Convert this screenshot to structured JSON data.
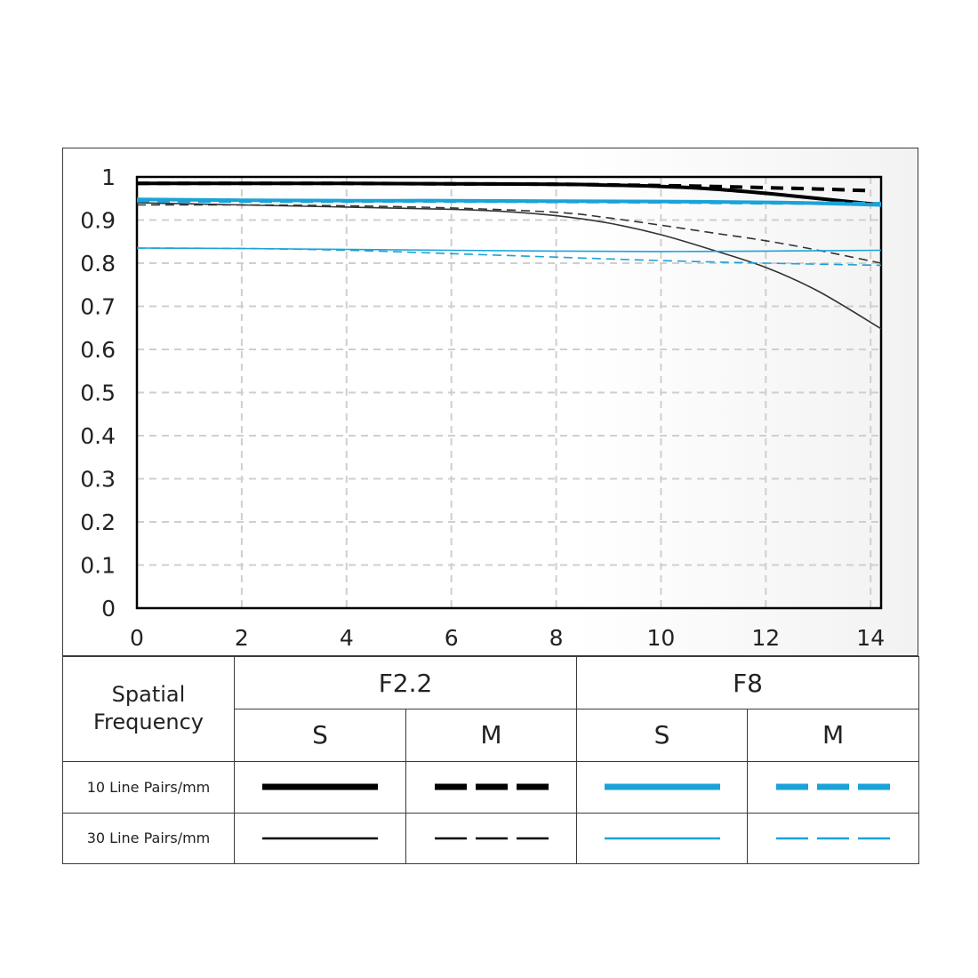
{
  "chart_data": {
    "type": "line",
    "x_ticks": [
      "0",
      "2",
      "4",
      "6",
      "8",
      "10",
      "12",
      "14"
    ],
    "y_ticks": [
      "0",
      "0.1",
      "0.2",
      "0.3",
      "0.4",
      "0.5",
      "0.6",
      "0.7",
      "0.8",
      "0.9",
      "1"
    ],
    "xlim": [
      0,
      14.2
    ],
    "ylim": [
      0,
      1
    ],
    "grid": true,
    "series": [
      {
        "aperture": "F2.2",
        "orientation": "S",
        "frequency": "10 Line Pairs/mm",
        "color": "#000000",
        "dash": "solid",
        "width": "thick",
        "x": [
          0,
          2,
          4,
          6,
          8,
          9,
          10,
          11,
          12,
          13,
          14.2
        ],
        "y": [
          0.985,
          0.985,
          0.985,
          0.984,
          0.983,
          0.981,
          0.978,
          0.972,
          0.962,
          0.95,
          0.935
        ]
      },
      {
        "aperture": "F2.2",
        "orientation": "M",
        "frequency": "10 Line Pairs/mm",
        "color": "#000000",
        "dash": "dashed",
        "width": "thick",
        "x": [
          0,
          2,
          4,
          6,
          8,
          10,
          11,
          12,
          13,
          14
        ],
        "y": [
          0.985,
          0.985,
          0.985,
          0.984,
          0.983,
          0.98,
          0.978,
          0.975,
          0.972,
          0.968
        ]
      },
      {
        "aperture": "F2.2",
        "orientation": "S",
        "frequency": "30 Line Pairs/mm",
        "color": "#333333",
        "dash": "solid",
        "width": "thin",
        "x": [
          0,
          2,
          4,
          6,
          7,
          8,
          9,
          10,
          11,
          12,
          13,
          14.2
        ],
        "y": [
          0.94,
          0.935,
          0.93,
          0.925,
          0.92,
          0.91,
          0.893,
          0.866,
          0.83,
          0.79,
          0.735,
          0.648
        ]
      },
      {
        "aperture": "F2.2",
        "orientation": "M",
        "frequency": "30 Line Pairs/mm",
        "color": "#333333",
        "dash": "dashed",
        "width": "thin",
        "x": [
          0,
          2,
          4,
          6,
          8,
          9,
          10,
          11,
          12,
          13,
          14.2
        ],
        "y": [
          0.935,
          0.935,
          0.933,
          0.928,
          0.918,
          0.905,
          0.888,
          0.87,
          0.852,
          0.83,
          0.8
        ]
      },
      {
        "aperture": "F8",
        "orientation": "S",
        "frequency": "10 Line Pairs/mm",
        "color": "#1aa3d9",
        "dash": "solid",
        "width": "thick",
        "x": [
          0,
          2,
          4,
          6,
          8,
          10,
          12,
          13,
          14.2
        ],
        "y": [
          0.948,
          0.946,
          0.945,
          0.945,
          0.944,
          0.943,
          0.941,
          0.939,
          0.935
        ]
      },
      {
        "aperture": "F8",
        "orientation": "M",
        "frequency": "10 Line Pairs/mm",
        "color": "#1aa3d9",
        "dash": "dashed",
        "width": "thick",
        "x": [
          0,
          2,
          4,
          6,
          8,
          10,
          12,
          14.2
        ],
        "y": [
          0.945,
          0.944,
          0.944,
          0.944,
          0.943,
          0.942,
          0.94,
          0.938
        ]
      },
      {
        "aperture": "F8",
        "orientation": "S",
        "frequency": "30 Line Pairs/mm",
        "color": "#1aa3d9",
        "dash": "solid",
        "width": "thin",
        "x": [
          0,
          2,
          4,
          6,
          8,
          10,
          12,
          14.2
        ],
        "y": [
          0.835,
          0.834,
          0.832,
          0.83,
          0.828,
          0.827,
          0.828,
          0.83
        ]
      },
      {
        "aperture": "F8",
        "orientation": "M",
        "frequency": "30 Line Pairs/mm",
        "color": "#1aa3d9",
        "dash": "dashed",
        "width": "thin",
        "x": [
          0,
          2,
          4,
          6,
          8,
          10,
          12,
          14.2
        ],
        "y": [
          0.835,
          0.834,
          0.83,
          0.822,
          0.814,
          0.806,
          0.8,
          0.795
        ]
      }
    ]
  },
  "legend": {
    "spatial_frequency_line1": "Spatial",
    "spatial_frequency_line2": "Frequency",
    "f22": "F2.2",
    "f8": "F8",
    "s": "S",
    "m": "M",
    "row_10": "10 Line Pairs/mm",
    "row_30": "30 Line Pairs/mm",
    "black": "#000000",
    "blue": "#1aa3d9"
  }
}
